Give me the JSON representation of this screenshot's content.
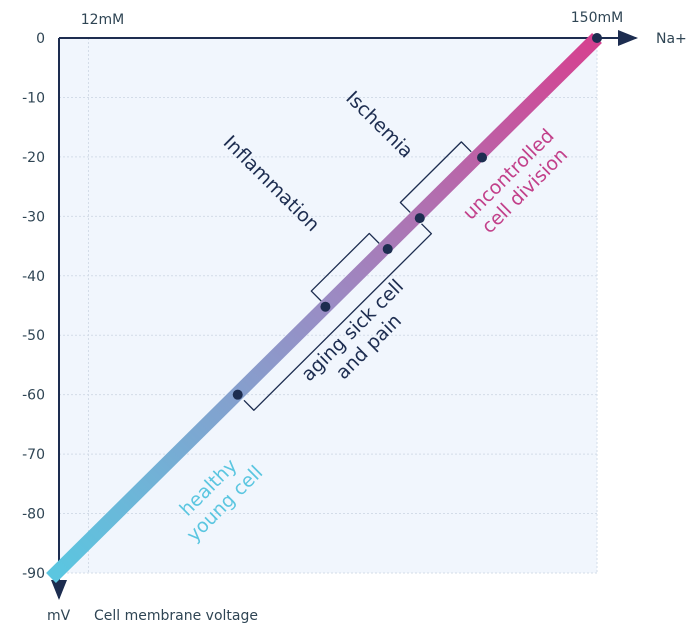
{
  "chart_data": {
    "type": "line",
    "title": "",
    "x_axis": {
      "label": "Na+",
      "markers": [
        {
          "value": 12,
          "label": "12mM"
        },
        {
          "value": 150,
          "label": "150mM"
        }
      ],
      "range": [
        4,
        150
      ]
    },
    "y_axis": {
      "unit_label": "mV",
      "label": "Cell membrane voltage",
      "range": [
        -90,
        0
      ],
      "ticks": [
        0,
        -10,
        -20,
        -30,
        -40,
        -50,
        -60,
        -70,
        -80,
        -90
      ],
      "tick_labels": [
        "0",
        "-10",
        "-20",
        "-30",
        "-40",
        "-50",
        "-60",
        "-70",
        "-80",
        "-90"
      ]
    },
    "grid": true,
    "series": [
      {
        "x": [
          4,
          150
        ],
        "y": [
          -90,
          0
        ],
        "color_start": "#5bc6e0",
        "color_mid": "#9a8cc4",
        "color_end": "#d6408f"
      }
    ],
    "points": [
      {
        "x": 52.5,
        "y": -60
      },
      {
        "x": 76.3,
        "y": -45.2
      },
      {
        "x": 93.2,
        "y": -35.5
      },
      {
        "x": 101.9,
        "y": -30.3
      },
      {
        "x": 118.8,
        "y": -20.1
      },
      {
        "x": 150,
        "y": 0
      }
    ],
    "regions": [
      {
        "label_lines": [
          "healthy",
          "young cell"
        ],
        "color": "#5bc6e0"
      },
      {
        "label_lines": [
          "aging sick cell",
          "and pain"
        ],
        "color": "#1d2d50",
        "y_span": [
          -60,
          -30.3
        ]
      },
      {
        "label_lines": [
          "Inflammation"
        ],
        "color": "#1d2d50",
        "y_span": [
          -45.2,
          -35.5
        ]
      },
      {
        "label_lines": [
          "Ischemia"
        ],
        "color": "#1d2d50",
        "y_span": [
          -30.3,
          -20.1
        ]
      },
      {
        "label_lines": [
          "uncontrolled",
          "cell division"
        ],
        "color": "#c2408a"
      }
    ],
    "colors": {
      "axis": "#1d2d50",
      "plot_bg": "#f1f6fd",
      "grid": "#d3dce8",
      "point": "#1d2d50"
    }
  }
}
